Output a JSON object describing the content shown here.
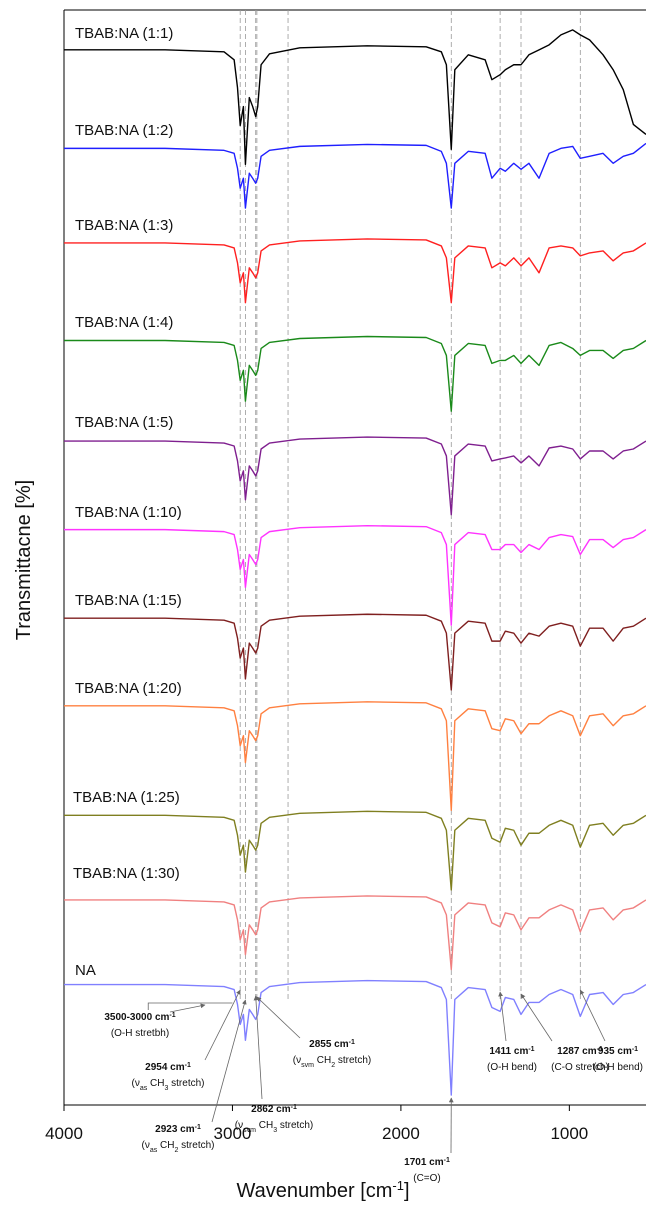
{
  "chart_data": {
    "type": "line",
    "ylabel": "Transmittacne [%]",
    "xlabel": "Wavenumber [cm",
    "xlabel_sup": "-1",
    "xlabel_end": "]",
    "xlim": [
      4000,
      545
    ],
    "xticks": [
      4000,
      3000,
      2000,
      1000
    ],
    "ylim": [
      0,
      110
    ],
    "x": [
      4000,
      3400,
      3050,
      2990,
      2970,
      2954,
      2935,
      2923,
      2900,
      2880,
      2862,
      2850,
      2830,
      2780,
      2600,
      2200,
      1850,
      1760,
      1730,
      1701,
      1680,
      1600,
      1500,
      1460,
      1411,
      1380,
      1330,
      1287,
      1240,
      1180,
      1120,
      1050,
      980,
      935,
      880,
      800,
      740,
      680,
      620,
      545
    ],
    "series": [
      {
        "name": "TBAB:NA (1:1)",
        "color": "#000000",
        "values": [
          106,
          106,
          105.8,
          105,
          102.2,
          98.4,
          100.3,
          94.5,
          101.2,
          100.3,
          99.3,
          100.3,
          104.5,
          105.6,
          106.2,
          106.4,
          106.3,
          105.8,
          104.5,
          96,
          104,
          105.5,
          105,
          103,
          103.5,
          104,
          104.5,
          104.5,
          105.5,
          106,
          106.5,
          107.5,
          108,
          107.5,
          107,
          105.5,
          104,
          102,
          98.5,
          97.5
        ]
      },
      {
        "name": "TBAB:NA (1:2)",
        "color": "#1f1fff",
        "values": [
          96.1,
          96.1,
          95.9,
          95.6,
          94.1,
          92.1,
          93.1,
          90.1,
          93.6,
          93.1,
          92.6,
          93.1,
          95.3,
          95.9,
          96.3,
          96.5,
          96.4,
          95.8,
          94.6,
          90.1,
          94.6,
          95.8,
          95.6,
          93.1,
          94.1,
          93.8,
          94.6,
          94,
          94.6,
          93.1,
          95.6,
          96.1,
          96.3,
          95.1,
          95.3,
          95.6,
          94.6,
          95.3,
          95.6,
          96.6
        ]
      },
      {
        "name": "TBAB:NA (1:3)",
        "color": "#ff2020",
        "values": [
          86.6,
          86.6,
          86.4,
          86.1,
          84.6,
          82.6,
          83.6,
          80.6,
          84.1,
          83.6,
          83.1,
          83.6,
          85.8,
          86.4,
          86.8,
          87,
          86.9,
          86.3,
          85.1,
          80.6,
          85.1,
          86.3,
          86.1,
          84.1,
          84.6,
          84.3,
          85.1,
          84.3,
          85.1,
          83.6,
          86.1,
          86.3,
          86.1,
          85.3,
          85.6,
          85.8,
          84.8,
          85.6,
          85.8,
          86.6
        ]
      },
      {
        "name": "TBAB:NA (1:4)",
        "color": "#1a8a1a",
        "values": [
          76.8,
          76.8,
          76.6,
          76.3,
          74.8,
          72.8,
          73.8,
          70.7,
          74.3,
          73.8,
          73.3,
          73.8,
          76,
          76.6,
          77,
          77.2,
          77.1,
          76.5,
          75.3,
          69.7,
          75.3,
          76.5,
          76.3,
          74.5,
          74.8,
          74.8,
          75.3,
          74.5,
          75.3,
          74.3,
          76.3,
          76.6,
          76,
          75.3,
          75.8,
          75.8,
          75,
          75.8,
          76,
          76.8
        ]
      },
      {
        "name": "TBAB:NA (1:5)",
        "color": "#7f1f8f",
        "values": [
          66.7,
          66.7,
          66.5,
          66.2,
          64.7,
          62.7,
          63.7,
          60.8,
          64.2,
          63.7,
          63.2,
          63.7,
          65.9,
          66.5,
          66.9,
          67.1,
          67,
          66.4,
          65.2,
          59.3,
          65.2,
          66.4,
          66.2,
          64.7,
          64.9,
          65,
          65.2,
          64.5,
          65.2,
          64.2,
          66,
          66.2,
          65.9,
          64.9,
          65.7,
          65.7,
          64.9,
          65.7,
          65.9,
          66.7
        ]
      },
      {
        "name": "TBAB:NA (1:10)",
        "color": "#ff33ff",
        "values": [
          57.8,
          57.8,
          57.6,
          57.3,
          55.8,
          53.8,
          54.8,
          52,
          55.3,
          54.8,
          54.3,
          54.8,
          57,
          57.6,
          58,
          58.2,
          58.1,
          57.5,
          56.3,
          48.2,
          56.3,
          57.5,
          57.3,
          55.8,
          55.8,
          56.3,
          56.3,
          55.5,
          56.3,
          55.8,
          57,
          57.3,
          57.1,
          55.3,
          56.8,
          56.8,
          56,
          56.8,
          57,
          57.8
        ]
      },
      {
        "name": "TBAB:NA (1:15)",
        "color": "#7f1f1f",
        "values": [
          48.9,
          48.9,
          48.7,
          48.4,
          46.9,
          44.9,
          45.9,
          42.8,
          46.4,
          45.9,
          45.4,
          45.9,
          48.1,
          48.7,
          49.1,
          49.3,
          49.2,
          48.6,
          47.4,
          41.7,
          47.4,
          48.6,
          48.4,
          46.6,
          46.6,
          47.6,
          47.4,
          46.4,
          47.4,
          47.1,
          48.1,
          48.4,
          48.1,
          46.1,
          47.9,
          47.9,
          46.6,
          47.9,
          48.1,
          48.9
        ]
      },
      {
        "name": "TBAB:NA (1:20)",
        "color": "#ff8040",
        "values": [
          40.1,
          40.1,
          39.9,
          39.6,
          38.1,
          36.1,
          37.1,
          34.4,
          37.6,
          37.1,
          36.6,
          37.1,
          39.3,
          39.9,
          40.3,
          40.5,
          40.4,
          39.8,
          38.6,
          29.6,
          38.6,
          39.8,
          39.6,
          37.8,
          37.6,
          38.8,
          38.6,
          37.3,
          38.3,
          38.3,
          39.1,
          39.6,
          39.1,
          37.1,
          39.1,
          39.3,
          38.1,
          39.1,
          39.3,
          40.1
        ]
      },
      {
        "name": "TBAB:NA (1:25)",
        "color": "#7f7f20",
        "values": [
          29.1,
          29.1,
          28.9,
          28.6,
          27.1,
          25.1,
          26.1,
          23.4,
          26.6,
          26.1,
          25.6,
          26.1,
          28.3,
          28.9,
          29.3,
          29.5,
          29.4,
          28.8,
          27.6,
          21.6,
          27.6,
          28.8,
          28.6,
          26.8,
          26.4,
          27.8,
          27.6,
          26.1,
          27.3,
          27.3,
          28.1,
          28.6,
          28.1,
          25.9,
          28.1,
          28.3,
          27.1,
          28.1,
          28.3,
          29.1
        ]
      },
      {
        "name": "TBAB:NA (1:30)",
        "color": "#f08080",
        "values": [
          20.6,
          20.6,
          20.4,
          20.1,
          18.6,
          16.6,
          17.6,
          15.1,
          18.1,
          17.6,
          17.1,
          17.6,
          19.8,
          20.4,
          20.8,
          21,
          20.9,
          20.3,
          19.1,
          13.6,
          19.1,
          20.3,
          20.1,
          18.3,
          17.9,
          19.3,
          19.1,
          17.6,
          18.8,
          18.8,
          19.6,
          20.1,
          19.6,
          17.4,
          19.6,
          19.8,
          18.6,
          19.6,
          19.8,
          20.6
        ]
      },
      {
        "name": "NA",
        "color": "#8080ff",
        "values": [
          12.1,
          12.1,
          11.9,
          11.6,
          10.1,
          8.1,
          9.1,
          6.5,
          9.6,
          9.1,
          8.6,
          9.1,
          11.3,
          11.9,
          12.3,
          12.5,
          12.4,
          11.8,
          10.6,
          1,
          10.6,
          11.8,
          11.6,
          9.8,
          9.4,
          10.8,
          10.6,
          9.1,
          10.3,
          10.3,
          11.1,
          11.6,
          11.1,
          8.9,
          11.1,
          11.3,
          10.1,
          11.1,
          11.3,
          12.1
        ]
      }
    ],
    "reference_lines": [
      2954,
      2923,
      2862,
      2855,
      2670,
      1701,
      1411,
      1287,
      935
    ],
    "annotations": [
      {
        "x": [
          3500,
          3000
        ],
        "head": "3500-3000 cm",
        "head_sup": "-1",
        "note": [
          "(O-H stretbh)"
        ]
      },
      {
        "x": 2954,
        "head": "2954 cm",
        "head_sup": "-1",
        "note": [
          "(ν",
          "as",
          " CH",
          "3",
          " stretch)"
        ]
      },
      {
        "x": 2923,
        "head": "2923 cm",
        "head_sup": "-1",
        "note": [
          "(ν",
          "as",
          " CH",
          "2",
          " stretch)"
        ]
      },
      {
        "x": 2862,
        "head": "2862 cm",
        "head_sup": "-1",
        "note": [
          "(ν",
          "svm",
          " CH",
          "3",
          " stretch)"
        ]
      },
      {
        "x": 2855,
        "head": "2855 cm",
        "head_sup": "-1",
        "note": [
          "(ν",
          "svm",
          " CH",
          "2",
          " stretch)"
        ]
      },
      {
        "x": 1701,
        "head": "1701 cm",
        "head_sup": "-1",
        "note": [
          "(C=O)"
        ]
      },
      {
        "x": 1411,
        "head": "1411 cm",
        "head_sup": "-1",
        "note": [
          "(O-H bend)"
        ]
      },
      {
        "x": 1287,
        "head": "1287 cm",
        "head_sup": "-1",
        "note": [
          "(C-O stretch)"
        ]
      },
      {
        "x": 935,
        "head": "935 cm",
        "head_sup": "-1",
        "note": [
          "(O-H bend)"
        ]
      }
    ]
  }
}
